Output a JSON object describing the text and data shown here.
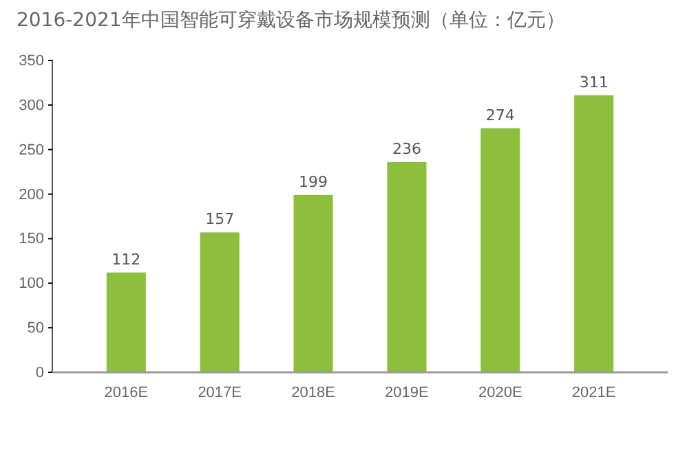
{
  "chart_data": {
    "type": "bar",
    "title": "2016-2021年中国智能可穿戴设备市场规模预测（单位：亿元）",
    "categories": [
      "2016E",
      "2017E",
      "2018E",
      "2019E",
      "2020E",
      "2021E"
    ],
    "values": [
      112,
      157,
      199,
      236,
      274,
      311
    ],
    "color": "#8dbf3c",
    "ylim": [
      0,
      350
    ],
    "yticks": [
      0,
      50,
      100,
      150,
      200,
      250,
      300,
      350
    ],
    "data_labels": true,
    "grid": false
  }
}
